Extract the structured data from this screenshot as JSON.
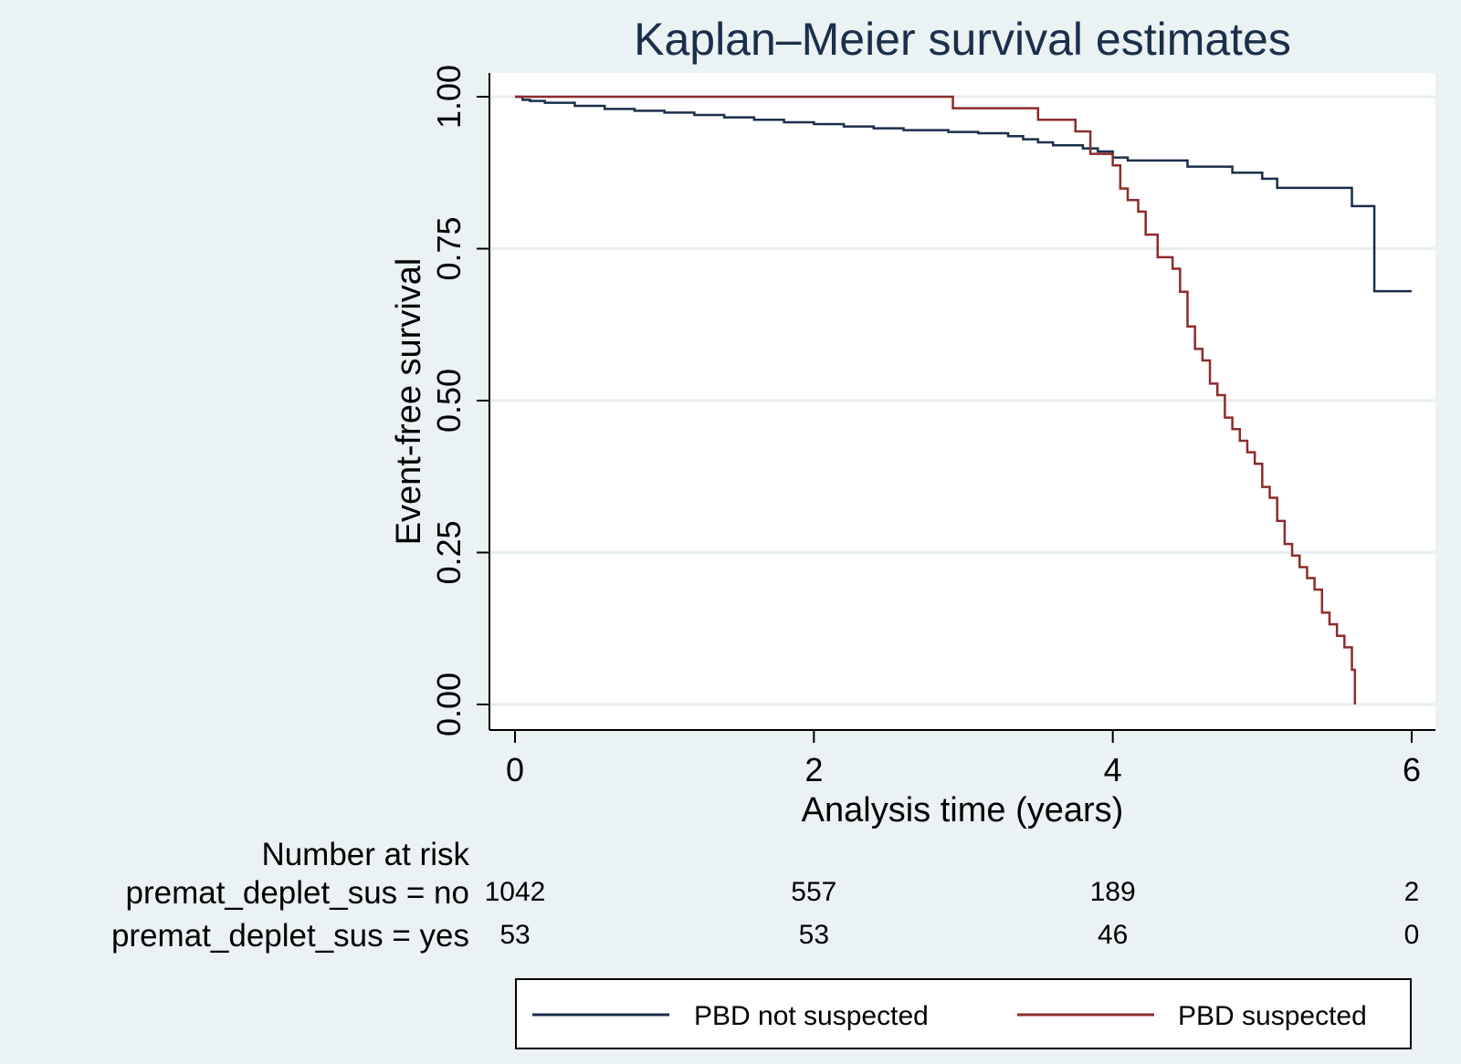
{
  "chart_data": {
    "type": "line",
    "title": "Kaplan–Meier survival estimates",
    "xlabel": "Analysis time (years)",
    "ylabel": "Event-free survival",
    "xlim": [
      0,
      6
    ],
    "ylim": [
      0,
      1
    ],
    "x_ticks": [
      0,
      2,
      4,
      6
    ],
    "x_tick_labels": [
      "0",
      "2",
      "4",
      "6"
    ],
    "y_ticks": [
      0,
      0.25,
      0.5,
      0.75,
      1.0
    ],
    "y_tick_labels": [
      "0.00",
      "0.25",
      "0.50",
      "0.75",
      "1.00"
    ],
    "grid": true,
    "step": true,
    "series": [
      {
        "name": "PBD not suspected",
        "color": "#1a2f4b",
        "x": [
          0,
          0.05,
          0.1,
          0.2,
          0.4,
          0.6,
          0.8,
          1.0,
          1.2,
          1.4,
          1.6,
          1.8,
          2.0,
          2.2,
          2.4,
          2.6,
          2.9,
          3.1,
          3.3,
          3.4,
          3.5,
          3.6,
          3.8,
          3.9,
          4.0,
          4.1,
          4.5,
          4.8,
          5.0,
          5.1,
          5.3,
          5.4,
          5.6,
          5.75,
          6.0
        ],
        "y": [
          1.0,
          0.995,
          0.993,
          0.99,
          0.985,
          0.98,
          0.977,
          0.974,
          0.97,
          0.966,
          0.962,
          0.958,
          0.955,
          0.951,
          0.948,
          0.945,
          0.942,
          0.94,
          0.935,
          0.93,
          0.925,
          0.92,
          0.915,
          0.91,
          0.9,
          0.895,
          0.885,
          0.875,
          0.865,
          0.85,
          0.85,
          0.85,
          0.82,
          0.68,
          0.68
        ]
      },
      {
        "name": "PBD suspected",
        "color": "#8e2b2b",
        "x": [
          0,
          2.93,
          3.5,
          3.75,
          3.85,
          4.0,
          4.05,
          4.1,
          4.17,
          4.22,
          4.3,
          4.4,
          4.45,
          4.5,
          4.55,
          4.6,
          4.65,
          4.7,
          4.75,
          4.8,
          4.85,
          4.9,
          4.95,
          5.0,
          5.05,
          5.1,
          5.15,
          5.2,
          5.25,
          5.3,
          5.35,
          5.4,
          5.45,
          5.5,
          5.55,
          5.6,
          5.62
        ],
        "y": [
          1.0,
          0.981,
          0.962,
          0.943,
          0.906,
          0.887,
          0.849,
          0.83,
          0.811,
          0.773,
          0.736,
          0.717,
          0.679,
          0.622,
          0.585,
          0.566,
          0.528,
          0.509,
          0.472,
          0.453,
          0.434,
          0.415,
          0.396,
          0.358,
          0.34,
          0.302,
          0.264,
          0.245,
          0.226,
          0.208,
          0.189,
          0.151,
          0.132,
          0.113,
          0.094,
          0.057,
          0.0
        ]
      }
    ],
    "risk_table": {
      "header": "Number at risk",
      "x": [
        0,
        2,
        4,
        6
      ],
      "rows": [
        {
          "label": "premat_deplet_sus = no",
          "values": [
            "1042",
            "557",
            "189",
            "2"
          ]
        },
        {
          "label": "premat_deplet_sus = yes",
          "values": [
            "53",
            "53",
            "46",
            "0"
          ]
        }
      ]
    },
    "legend": {
      "placement": "bottom"
    }
  }
}
